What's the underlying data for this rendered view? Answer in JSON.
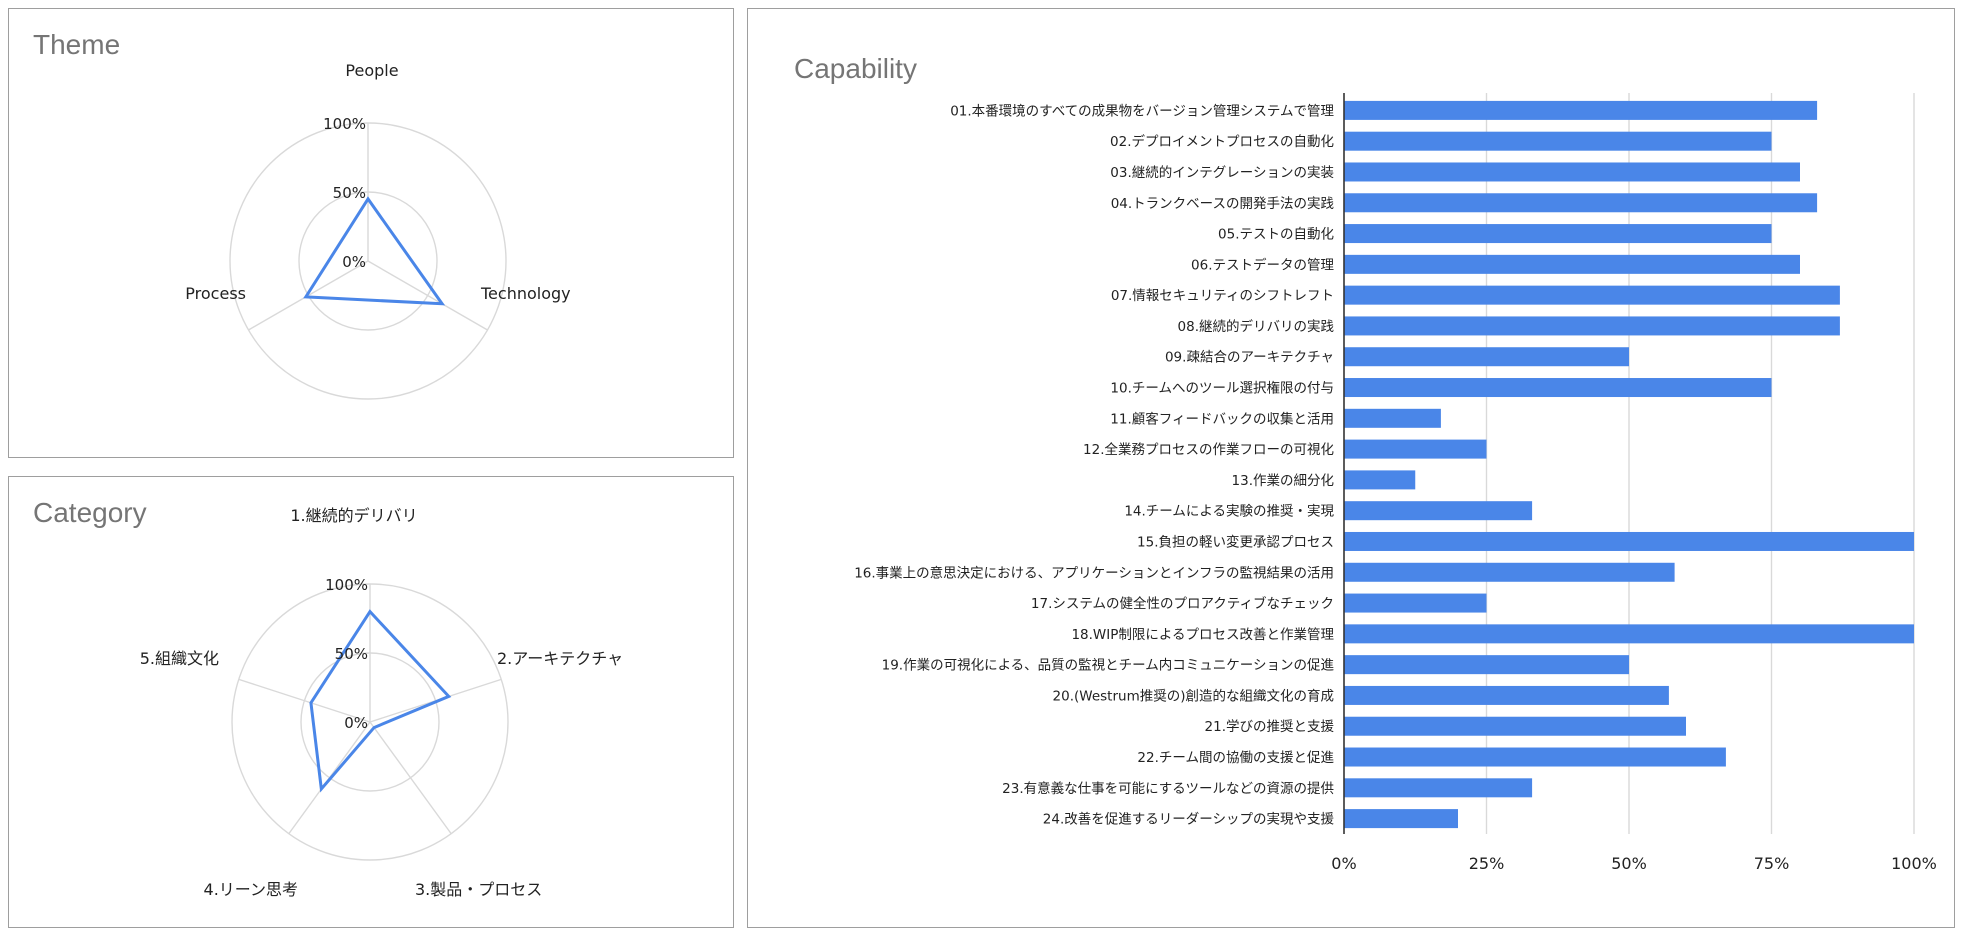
{
  "theme": {
    "title": "Theme"
  },
  "category": {
    "title": "Category"
  },
  "capability": {
    "title": "Capability"
  },
  "colors": {
    "series": "#4a86e8",
    "grid": "#d9d9d9",
    "axis": "#333333",
    "title": "#757575"
  },
  "chart_data": [
    {
      "type": "radar",
      "title": "Theme",
      "axes": [
        "People",
        "Technology",
        "Process"
      ],
      "values": [
        45,
        62,
        52
      ],
      "ticks": [
        "0%",
        "50%",
        "100%"
      ],
      "range": [
        0,
        100
      ]
    },
    {
      "type": "radar",
      "title": "Category",
      "axes": [
        "1.継続的デリバリ",
        "2.アーキテクチャ",
        "3.製品・プロセス",
        "4.リーン思考",
        "5.組織文化"
      ],
      "values": [
        80,
        60,
        5,
        60,
        45
      ],
      "ticks": [
        "0%",
        "50%",
        "100%"
      ],
      "range": [
        0,
        100
      ]
    },
    {
      "type": "bar",
      "orientation": "horizontal",
      "title": "Capability",
      "categories": [
        "01.本番環境のすべての成果物をバージョン管理システムで管理",
        "02.デプロイメントプロセスの自動化",
        "03.継続的インテグレーションの実装",
        "04.トランクベースの開発手法の実践",
        "05.テストの自動化",
        "06.テストデータの管理",
        "07.情報セキュリティのシフトレフト",
        "08.継続的デリバリの実践",
        "09.疎結合のアーキテクチャ",
        "10.チームへのツール選択権限の付与",
        "11.顧客フィードバックの収集と活用",
        "12.全業務プロセスの作業フローの可視化",
        "13.作業の細分化",
        "14.チームによる実験の推奨・実現",
        "15.負担の軽い変更承認プロセス",
        "16.事業上の意思決定における、アプリケーションとインフラの監視結果の活用",
        "17.システムの健全性のプロアクティブなチェック",
        "18.WIP制限によるプロセス改善と作業管理",
        "19.作業の可視化による、品質の監視とチーム内コミュニケーションの促進",
        "20.(Westrum推奨の)創造的な組織文化の育成",
        "21.学びの推奨と支援",
        "22.チーム間の協働の支援と促進",
        "23.有意義な仕事を可能にするツールなどの資源の提供",
        "24.改善を促進するリーダーシップの実現や支援"
      ],
      "values": [
        83,
        75,
        80,
        83,
        75,
        80,
        87,
        87,
        50,
        75,
        17,
        25,
        12.5,
        33,
        100,
        58,
        25,
        100,
        50,
        57,
        60,
        67,
        33,
        20
      ],
      "xticks": [
        "0%",
        "25%",
        "50%",
        "75%",
        "100%"
      ],
      "xlim": [
        0,
        100
      ],
      "grid": true
    }
  ]
}
